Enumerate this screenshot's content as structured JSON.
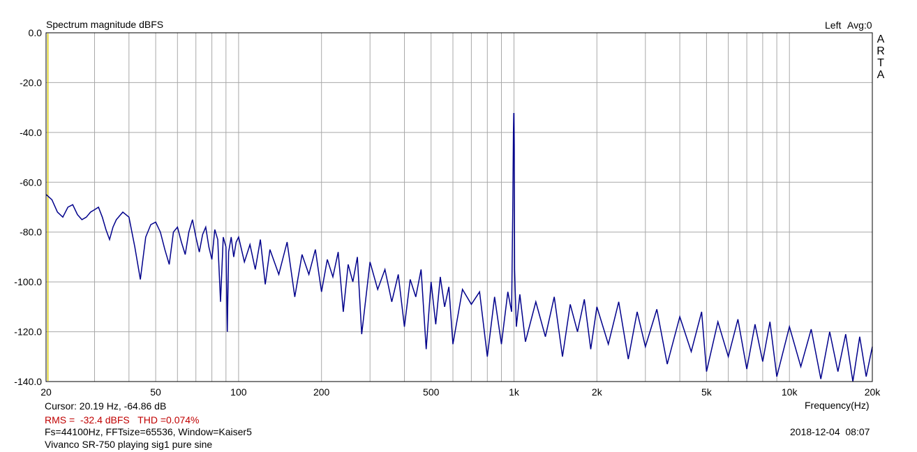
{
  "header": {
    "title": "Spectrum magnitude dBFS",
    "channel": "Left",
    "avg_label": "Avg:0",
    "brand": [
      "A",
      "R",
      "T",
      "A"
    ]
  },
  "footer": {
    "cursor": "Cursor: 20.19 Hz, -64.86 dB",
    "rms_thd": "RMS =  -32.4 dBFS   THD =0.074%",
    "settings": "Fs=44100Hz, FFTsize=65536, Window=Kaiser5",
    "description": "Vivanco SR-750 playing sig1 pure sine",
    "timestamp": "2018-12-04  08:07"
  },
  "colors": {
    "trace": "#00008b",
    "grid": "#a8a8a8",
    "cursor": "#d8c800",
    "rms_text": "#c00000"
  },
  "chart_data": {
    "type": "line",
    "title": "Spectrum magnitude dBFS",
    "xlabel": "Frequency(Hz)",
    "ylabel": "",
    "x_scale": "log",
    "xlim": [
      20,
      20000
    ],
    "ylim": [
      -140,
      0
    ],
    "x_ticks": [
      {
        "value": 20,
        "label": "20"
      },
      {
        "value": 50,
        "label": "50"
      },
      {
        "value": 100,
        "label": "100"
      },
      {
        "value": 200,
        "label": "200"
      },
      {
        "value": 500,
        "label": "500"
      },
      {
        "value": 1000,
        "label": "1k"
      },
      {
        "value": 2000,
        "label": "2k"
      },
      {
        "value": 5000,
        "label": "5k"
      },
      {
        "value": 10000,
        "label": "10k"
      },
      {
        "value": 20000,
        "label": "20k"
      }
    ],
    "y_ticks": [
      {
        "value": 0,
        "label": "0.0"
      },
      {
        "value": -20,
        "label": "-20.0"
      },
      {
        "value": -40,
        "label": "-40.0"
      },
      {
        "value": -60,
        "label": "-60.0"
      },
      {
        "value": -80,
        "label": "-80.0"
      },
      {
        "value": -100,
        "label": "-100.0"
      },
      {
        "value": -120,
        "label": "-120.0"
      },
      {
        "value": -140,
        "label": "-140.0"
      }
    ],
    "grid": true,
    "cursor_x": 20.19,
    "series": [
      {
        "x": [
          20,
          21,
          22,
          23,
          24,
          25,
          26,
          27,
          28,
          29,
          30,
          31,
          32,
          33,
          34,
          35,
          36,
          38,
          40,
          42,
          44,
          46,
          48,
          50,
          52,
          54,
          56,
          58,
          60,
          62,
          64,
          66,
          68,
          70,
          72,
          74,
          76,
          78,
          80,
          82,
          84,
          86,
          88,
          90,
          91,
          92,
          94,
          96,
          98,
          100,
          105,
          110,
          115,
          120,
          125,
          130,
          140,
          150,
          160,
          170,
          180,
          190,
          200,
          210,
          220,
          230,
          240,
          250,
          260,
          270,
          280,
          300,
          320,
          340,
          360,
          380,
          400,
          420,
          440,
          460,
          480,
          500,
          520,
          540,
          560,
          580,
          600,
          650,
          700,
          750,
          800,
          850,
          900,
          950,
          980,
          990,
          995,
          998,
          1000,
          1002,
          1005,
          1010,
          1020,
          1050,
          1100,
          1200,
          1300,
          1400,
          1500,
          1600,
          1700,
          1800,
          1900,
          2000,
          2200,
          2400,
          2600,
          2800,
          3000,
          3300,
          3600,
          4000,
          4400,
          4800,
          5000,
          5500,
          6000,
          6500,
          7000,
          7500,
          8000,
          8500,
          9000,
          10000,
          11000,
          12000,
          13000,
          14000,
          15000,
          16000,
          17000,
          18000,
          19000,
          20000
        ],
        "y": [
          -64.9,
          -67,
          -72,
          -74,
          -70,
          -69,
          -73,
          -75,
          -74,
          -72,
          -71,
          -70,
          -74,
          -79,
          -83,
          -78,
          -75,
          -72,
          -74,
          -86,
          -99,
          -82,
          -77,
          -76,
          -80,
          -87,
          -93,
          -80,
          -78,
          -84,
          -89,
          -80,
          -75,
          -82,
          -88,
          -81,
          -78,
          -86,
          -91,
          -79,
          -83,
          -108,
          -82,
          -86,
          -120,
          -88,
          -82,
          -90,
          -84,
          -82,
          -92,
          -85,
          -95,
          -83,
          -101,
          -87,
          -97,
          -84,
          -106,
          -89,
          -97,
          -87,
          -104,
          -91,
          -98,
          -88,
          -112,
          -93,
          -100,
          -90,
          -121,
          -92,
          -103,
          -95,
          -108,
          -97,
          -118,
          -99,
          -106,
          -95,
          -127,
          -100,
          -117,
          -98,
          -110,
          -102,
          -125,
          -103,
          -109,
          -104,
          -130,
          -106,
          -125,
          -104,
          -112,
          -70,
          -40,
          -32.4,
          -32.4,
          -45,
          -95,
          -103,
          -118,
          -105,
          -124,
          -108,
          -122,
          -106,
          -130,
          -109,
          -120,
          -107,
          -127,
          -110,
          -125,
          -108,
          -131,
          -112,
          -126,
          -111,
          -133,
          -114,
          -128,
          -112,
          -136,
          -116,
          -130,
          -115,
          -135,
          -117,
          -132,
          -116,
          -138,
          -118,
          -134,
          -119,
          -139,
          -120,
          -136,
          -121,
          -140,
          -122,
          -138,
          -126
        ]
      }
    ]
  }
}
